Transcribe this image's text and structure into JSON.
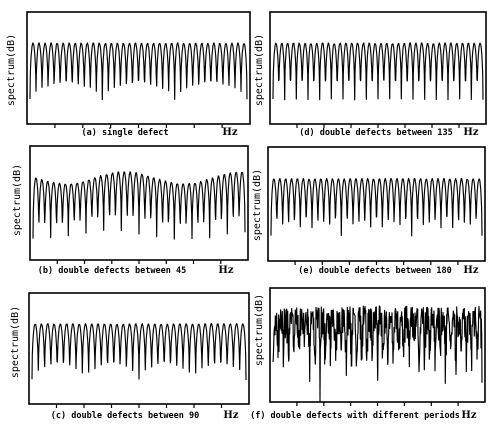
{
  "chart_data": [
    {
      "id": "a",
      "type": "line",
      "title": "(a) single defect",
      "ylabel": "spectrum(dB)",
      "xlabel": "Hz",
      "peaks": 36,
      "style": "regular",
      "seed": 11,
      "grid": false
    },
    {
      "id": "d",
      "type": "line",
      "title": "(d) double defects between 135",
      "ylabel": "spectrum(dB)",
      "xlabel": "Hz",
      "peaks": 36,
      "style": "regular",
      "seed": 23,
      "grid": false
    },
    {
      "id": "b",
      "type": "line",
      "title": "(b) double defects between 45",
      "ylabel": "spectrum(dB)",
      "xlabel": "Hz",
      "peaks": 36,
      "style": "modulated",
      "seed": 37,
      "grid": false
    },
    {
      "id": "e",
      "type": "line",
      "title": "(e) double defects between 180",
      "ylabel": "spectrum(dB)",
      "xlabel": "Hz",
      "peaks": 36,
      "style": "regular",
      "seed": 41,
      "grid": false
    },
    {
      "id": "c",
      "type": "line",
      "title": "(c) double defects between 90",
      "ylabel": "spectrum(dB)",
      "xlabel": "Hz",
      "peaks": 34,
      "style": "regular",
      "seed": 53,
      "grid": false
    },
    {
      "id": "f",
      "type": "line",
      "title": "(f) double defects with different periods",
      "ylabel": "spectrum(dB)",
      "xlabel": "Hz",
      "peaks": 40,
      "style": "noisy",
      "seed": 67,
      "grid": false
    }
  ]
}
